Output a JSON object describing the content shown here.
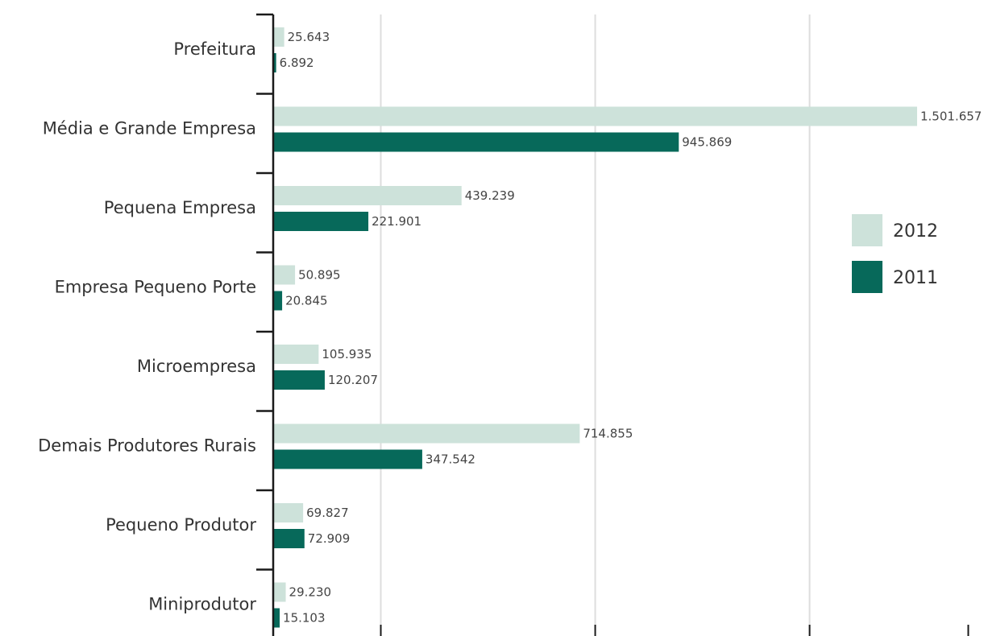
{
  "colors": {
    "series_2012": "#cde2da",
    "series_2011": "#07695a",
    "axis": "#1a1a1a",
    "grid": "#dddddd"
  },
  "chart_data": {
    "type": "bar",
    "orientation": "horizontal",
    "categories": [
      "Prefeitura",
      "Média e Grande Empresa",
      "Pequena Empresa",
      "Empresa Pequeno Porte",
      "Microempresa",
      "Demais Produtores Rurais",
      "Pequeno Produtor",
      "Miniprodutor"
    ],
    "series": [
      {
        "name": "2012",
        "values": [
          25643,
          1501657,
          439239,
          50895,
          105935,
          714855,
          69827,
          29230
        ],
        "labels": [
          "25.643",
          "1.501.657",
          "439.239",
          "50.895",
          "105.935",
          "714.855",
          "69.827",
          "29.230"
        ]
      },
      {
        "name": "2011",
        "values": [
          6892,
          945869,
          221901,
          20845,
          120207,
          347542,
          72909,
          15103
        ],
        "labels": [
          "6.892",
          "945.869",
          "221.901",
          "20.845",
          "120.207",
          "347.542",
          "72.909",
          "15.103"
        ]
      }
    ],
    "xlim": [
      0,
      1620000
    ],
    "grid": true,
    "legend_position": "right",
    "title": "",
    "xlabel": "",
    "ylabel": ""
  }
}
